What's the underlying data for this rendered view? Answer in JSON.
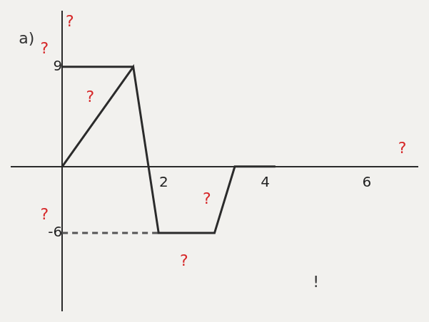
{
  "chart_data": {
    "type": "line",
    "xlim": [
      -1,
      7
    ],
    "xticks": [
      2,
      4,
      6
    ],
    "ylim": [
      -13,
      14
    ],
    "yticks": [
      -6,
      9
    ],
    "grid": false,
    "series": [
      {
        "x": [
          0,
          1.4,
          1.9,
          3,
          3.4,
          4.2
        ],
        "values": [
          0,
          9,
          -6,
          -6,
          0,
          0
        ],
        "color": "#2b2b2b",
        "line_style": "solid"
      },
      {
        "x": [
          0,
          1.4
        ],
        "values": [
          9,
          9
        ],
        "color": "#2b2b2b",
        "line_style": "solid"
      },
      {
        "x": [
          0,
          1.9
        ],
        "values": [
          -6,
          -6
        ],
        "color": "#555555",
        "line_style": "dashed"
      }
    ],
    "annotations": [
      {
        "text": "a)",
        "x": -0.7,
        "y": 11.5,
        "color": "#333333"
      },
      {
        "text": "?",
        "x": 0.15,
        "y": 13,
        "color": "#d62728"
      },
      {
        "text": "?",
        "x": -0.35,
        "y": 10.6,
        "color": "#d62728"
      },
      {
        "text": "?",
        "x": 0.55,
        "y": 6.2,
        "color": "#d62728"
      },
      {
        "text": "?",
        "x": 6.7,
        "y": 1.6,
        "color": "#d62728"
      },
      {
        "text": "?",
        "x": -0.35,
        "y": -4.4,
        "color": "#d62728"
      },
      {
        "text": "?",
        "x": 2.85,
        "y": -3,
        "color": "#d62728"
      },
      {
        "text": "?",
        "x": 2.4,
        "y": -8.6,
        "color": "#d62728"
      },
      {
        "text": "!",
        "x": 5,
        "y": -10.5,
        "color": "#333333"
      }
    ]
  }
}
